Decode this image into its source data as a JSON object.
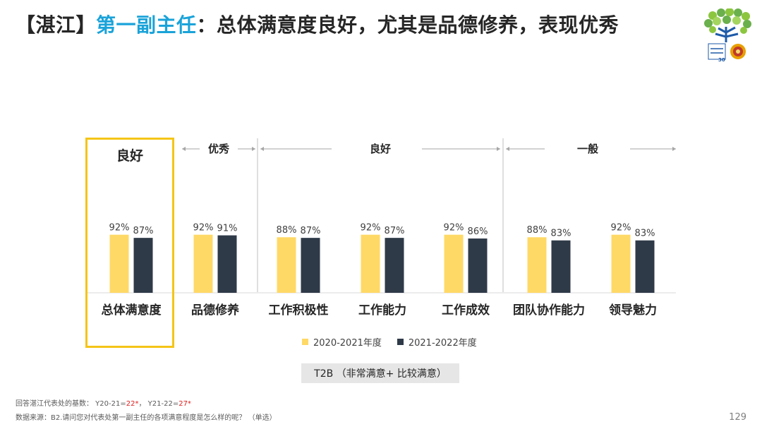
{
  "title": {
    "prefix": "【湛江】",
    "role": "第一副主任",
    "rest": "：总体满意度良好，尤其是品德修养，表现优秀"
  },
  "bands": {
    "overall": "良好",
    "excellent": "优秀",
    "good": "良好",
    "average": "一般"
  },
  "chart_data": {
    "type": "bar",
    "categories": [
      "总体满意度",
      "品德修养",
      "工作积极性",
      "工作能力",
      "工作成效",
      "团队协作能力",
      "领导魅力"
    ],
    "series": [
      {
        "name": "2020-2021年度",
        "values": [
          92,
          92,
          88,
          92,
          92,
          88,
          92
        ],
        "labels": [
          "92%",
          "92%",
          "88%",
          "92%",
          "92%",
          "88%",
          "92%"
        ],
        "color": "#ffd966"
      },
      {
        "name": "2021-2022年度",
        "values": [
          87,
          91,
          87,
          87,
          86,
          83,
          83
        ],
        "labels": [
          "87%",
          "91%",
          "87%",
          "87%",
          "86%",
          "83%",
          "83%"
        ],
        "color": "#2f3a48"
      }
    ],
    "unit": "%"
  },
  "legend": {
    "s1": "2020-2021年度",
    "s2": "2021-2022年度"
  },
  "t2b_label": "T2B （非常满意+ 比较满意）",
  "footnote": {
    "base_prefix": "回答湛江代表处的基数：  Y20-21=",
    "base_y1": "22*",
    "base_mid": "，  Y21-22=",
    "base_y2": "27*",
    "source": "数据来源：B2.请问您对代表处第一副主任的各项满意程度是怎么样的呢？ （单选）"
  },
  "page_number": "129",
  "colors": {
    "accent": "#1aa3d9",
    "highlight": "#f5c518",
    "series1": "#ffd966",
    "series2": "#2f3a48"
  }
}
